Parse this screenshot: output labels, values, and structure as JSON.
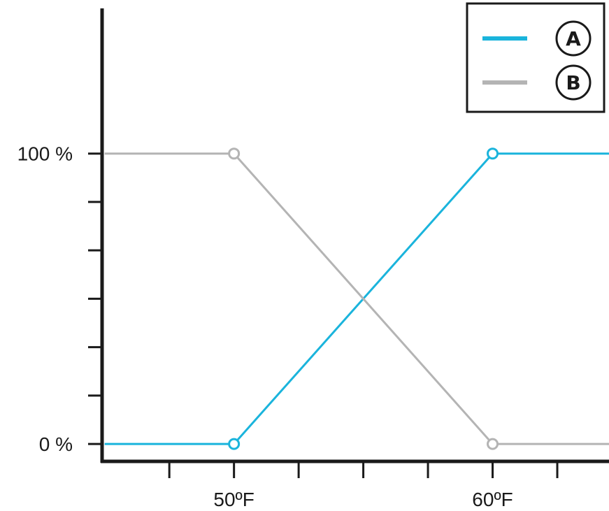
{
  "chart_data": {
    "type": "line",
    "xlim": [
      44.9,
      64.5
    ],
    "ylim": [
      -0.06,
      1.5
    ],
    "x_ticks": [
      47.5,
      50,
      52.5,
      55,
      57.5,
      60,
      62.5
    ],
    "x_tick_labels": [
      {
        "x": 50,
        "label": "50ºF"
      },
      {
        "x": 60,
        "label": "60ºF"
      }
    ],
    "y_ticks": [
      0,
      0.1667,
      0.3333,
      0.5,
      0.6667,
      0.8333,
      1
    ],
    "y_tick_labels": [
      {
        "y": 0,
        "label": "0 %"
      },
      {
        "y": 1,
        "label": "100 %"
      }
    ],
    "grid": false,
    "legend": "top-right",
    "series": [
      {
        "name": "A",
        "color": "#1ab4dc",
        "x": [
          45,
          50,
          60,
          64.5
        ],
        "y": [
          0,
          0,
          1,
          1
        ],
        "markers": [
          50,
          60
        ]
      },
      {
        "name": "B",
        "color": "#b4b4b4",
        "x": [
          45,
          50,
          60,
          64.5
        ],
        "y": [
          1,
          1,
          0,
          0
        ],
        "markers": [
          50,
          60
        ]
      }
    ]
  }
}
